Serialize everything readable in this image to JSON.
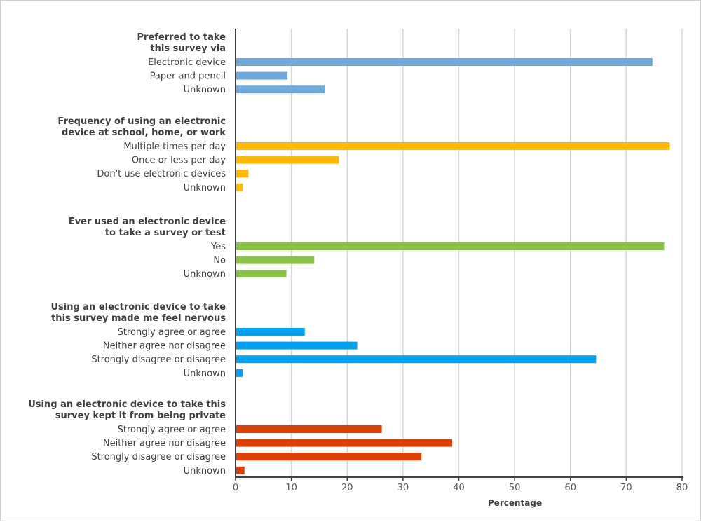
{
  "chart_data": {
    "type": "bar",
    "orientation": "horizontal",
    "title": "",
    "xlabel": "Percentage",
    "ylabel": "",
    "xlim": [
      0,
      80
    ],
    "xticks": [
      0,
      10,
      20,
      30,
      40,
      50,
      60,
      70,
      80
    ],
    "grid": "vertical",
    "legend": "none",
    "groups": [
      {
        "title": [
          "Preferred to take",
          "this survey via"
        ],
        "color": "#6FA8DC",
        "categories": [
          "Electronic device",
          "Paper and pencil",
          "Unknown"
        ],
        "values": [
          74.7,
          9.3,
          16.0
        ]
      },
      {
        "title": [
          "Frequency of using an electronic",
          "device at school, home, or work"
        ],
        "color": "#FFB900",
        "categories": [
          "Multiple times per day",
          "Once or less per day",
          "Don't use electronic devices",
          "Unknown"
        ],
        "values": [
          77.8,
          18.5,
          2.3,
          1.3
        ]
      },
      {
        "title": [
          "Ever used an electronic device",
          "to take a survey or test"
        ],
        "color": "#8BC34A",
        "categories": [
          "Yes",
          "No",
          "Unknown"
        ],
        "values": [
          76.8,
          14.1,
          9.1
        ]
      },
      {
        "title": [
          "Using an electronic device to take",
          "this survey made me feel nervous"
        ],
        "color": "#00A2F2",
        "categories": [
          "Strongly agree or agree",
          "Neither agree nor disagree",
          "Strongly disagree or disagree",
          "Unknown"
        ],
        "values": [
          12.4,
          21.8,
          64.6,
          1.3
        ]
      },
      {
        "title": [
          "Using an electronic device to take this",
          "survey kept it from being private"
        ],
        "color": "#DD4000",
        "categories": [
          "Strongly agree or agree",
          "Neither agree nor disagree",
          "Strongly disagree or disagree",
          "Unknown"
        ],
        "values": [
          26.2,
          38.8,
          33.3,
          1.6
        ]
      }
    ]
  }
}
